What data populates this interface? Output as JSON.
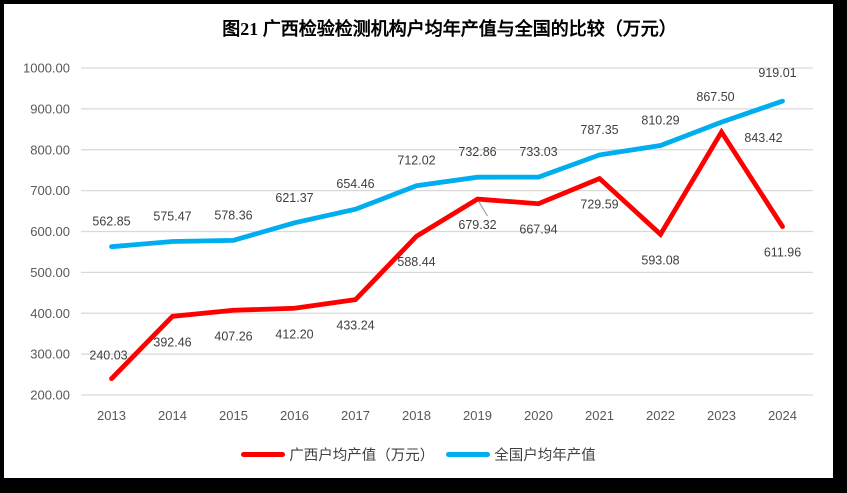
{
  "frame": {
    "border_color": "#000000",
    "background": "#FFFFFF"
  },
  "chart_data": {
    "type": "line",
    "title": "图21 广西检验检测机构户均年产值与全国的比较（万元）",
    "categories": [
      "2013",
      "2014",
      "2015",
      "2016",
      "2017",
      "2018",
      "2019",
      "2020",
      "2021",
      "2022",
      "2023",
      "2024"
    ],
    "series": [
      {
        "name": "广西户均产值（万元）",
        "color": "#FE0000",
        "values": [
          240.03,
          392.46,
          407.26,
          412.2,
          433.24,
          588.44,
          679.32,
          667.94,
          729.59,
          593.08,
          843.42,
          611.96
        ],
        "labels": [
          "240.03",
          "392.46",
          "407.26",
          "412.20",
          "433.24",
          "588.44",
          "679.32",
          "667.94",
          "729.59",
          "593.08",
          "843.42",
          "611.96"
        ]
      },
      {
        "name": "全国户均年产值",
        "color": "#00AEEF",
        "values": [
          562.85,
          575.47,
          578.36,
          621.37,
          654.46,
          712.02,
          732.86,
          733.03,
          787.35,
          810.29,
          867.5,
          919.01
        ],
        "labels": [
          "562.85",
          "575.47",
          "578.36",
          "621.37",
          "654.46",
          "712.02",
          "732.86",
          "733.03",
          "787.35",
          "810.29",
          "867.50",
          "919.01"
        ]
      }
    ],
    "ylim": [
      200,
      1000
    ],
    "ytick_step": 100,
    "ytick_labels": [
      "200.00",
      "300.00",
      "400.00",
      "500.00",
      "600.00",
      "700.00",
      "800.00",
      "900.00",
      "1000.00"
    ],
    "grid": true,
    "gridline_color": "#D9D9D9",
    "axis_label_color": "#595959",
    "data_label_color": "#404040",
    "leader_line_color": "#A6A6A6",
    "legend_position": "bottom"
  }
}
